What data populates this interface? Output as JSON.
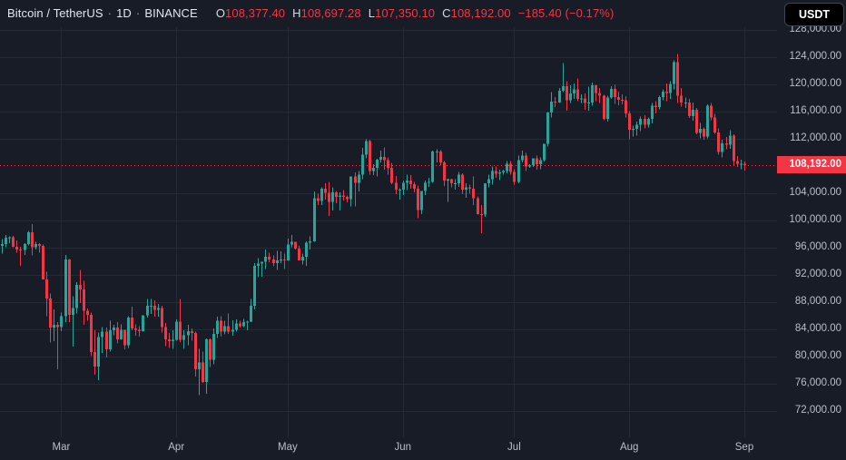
{
  "header": {
    "symbol": "Bitcoin / TetherUS",
    "separator": "·",
    "interval": "1D",
    "exchange": "BINANCE",
    "ohlc": {
      "o_label": "O",
      "open": "108,377.40",
      "h_label": "H",
      "high": "108,697.28",
      "l_label": "L",
      "low": "107,350.10",
      "c_label": "C",
      "close": "108,192.00",
      "change": "−185.40 (−0.17%)"
    }
  },
  "currency_button": {
    "label": "USDT"
  },
  "price_axis": {
    "current_price_label": "108,192.00"
  },
  "colors": {
    "background": "#181c27",
    "grid": "#242a37",
    "up": "#26a69a",
    "down": "#f23645",
    "dotted_line": "#f23645",
    "axis_text": "#b9bfca",
    "title_text": "#e3e6ee",
    "price_tag_bg": "#f23645",
    "price_tag_text": "#ffffff",
    "button_bg": "#000000",
    "button_text": "#ffffff"
  },
  "chart_data": {
    "type": "candlestick",
    "title": "Bitcoin / TetherUS · 1D · BINANCE",
    "unit": "USDT",
    "ylim": [
      68440,
      128440
    ],
    "grid": true,
    "current_price": 108192,
    "y_ticks": [
      {
        "value": 128000,
        "label": "128,000.00"
      },
      {
        "value": 124000,
        "label": "124,000.00"
      },
      {
        "value": 120000,
        "label": "120,000.00"
      },
      {
        "value": 116000,
        "label": "116,000.00"
      },
      {
        "value": 112000,
        "label": "112,000.00"
      },
      {
        "value": 104000,
        "label": "104,000.00"
      },
      {
        "value": 100000,
        "label": "100,000.00"
      },
      {
        "value": 96000,
        "label": "96,000.00"
      },
      {
        "value": 92000,
        "label": "92,000.00"
      },
      {
        "value": 88000,
        "label": "88,000.00"
      },
      {
        "value": 84000,
        "label": "84,000.00"
      },
      {
        "value": 80000,
        "label": "80,000.00"
      },
      {
        "value": 76000,
        "label": "76,000.00"
      },
      {
        "value": 72000,
        "label": "72,000.00"
      }
    ],
    "x_ticks": [
      {
        "label": "Mar",
        "index": 16
      },
      {
        "label": "Apr",
        "index": 47
      },
      {
        "label": "May",
        "index": 77
      },
      {
        "label": "Jun",
        "index": 108
      },
      {
        "label": "Jul",
        "index": 138
      },
      {
        "label": "Aug",
        "index": 169
      },
      {
        "label": "Sep",
        "index": 200
      }
    ],
    "candles": [
      [
        96300,
        97300,
        95200,
        96600
      ],
      [
        96600,
        97900,
        96100,
        97500
      ],
      [
        97500,
        97700,
        96700,
        97600
      ],
      [
        97600,
        97800,
        96100,
        96200
      ],
      [
        96200,
        97100,
        95300,
        95800
      ],
      [
        95800,
        96200,
        93400,
        95700
      ],
      [
        95700,
        96700,
        95000,
        96600
      ],
      [
        96600,
        98500,
        96400,
        98300
      ],
      [
        98300,
        99500,
        94900,
        96100
      ],
      [
        96100,
        96900,
        95800,
        96600
      ],
      [
        96600,
        96700,
        95300,
        96300
      ],
      [
        96300,
        96500,
        91400,
        91400
      ],
      [
        91400,
        92500,
        86000,
        88600
      ],
      [
        88600,
        89300,
        82100,
        84300
      ],
      [
        84300,
        87000,
        82300,
        84700
      ],
      [
        84700,
        85100,
        78200,
        84400
      ],
      [
        84400,
        86500,
        83800,
        86000
      ],
      [
        86000,
        95000,
        85100,
        94300
      ],
      [
        94300,
        94400,
        85100,
        86200
      ],
      [
        86200,
        88900,
        81500,
        87200
      ],
      [
        87200,
        91000,
        86400,
        90600
      ],
      [
        90600,
        92800,
        87900,
        89900
      ],
      [
        89900,
        91200,
        84700,
        86800
      ],
      [
        86800,
        87100,
        85300,
        86200
      ],
      [
        86200,
        86500,
        80100,
        80700
      ],
      [
        80700,
        83900,
        77400,
        78600
      ],
      [
        78600,
        83600,
        76600,
        82900
      ],
      [
        82900,
        84400,
        80600,
        83700
      ],
      [
        83700,
        84300,
        79900,
        81100
      ],
      [
        81100,
        85300,
        80800,
        83900
      ],
      [
        83900,
        84700,
        83200,
        84300
      ],
      [
        84300,
        85100,
        82000,
        82600
      ],
      [
        82600,
        84800,
        82500,
        84000
      ],
      [
        84000,
        84000,
        81100,
        81700
      ],
      [
        81700,
        86000,
        81300,
        85800
      ],
      [
        85800,
        87400,
        83900,
        84200
      ],
      [
        84200,
        84800,
        83100,
        84000
      ],
      [
        84000,
        84500,
        83000,
        83800
      ],
      [
        83800,
        86100,
        83700,
        86100
      ],
      [
        86100,
        88500,
        85800,
        87500
      ],
      [
        87500,
        88500,
        86300,
        87500
      ],
      [
        87500,
        88300,
        85900,
        86900
      ],
      [
        86900,
        87800,
        85900,
        87200
      ],
      [
        87200,
        87500,
        83600,
        84400
      ],
      [
        84400,
        85000,
        81600,
        82600
      ],
      [
        82600,
        83500,
        81300,
        82300
      ],
      [
        82300,
        83900,
        81200,
        82500
      ],
      [
        82500,
        85500,
        82400,
        85200
      ],
      [
        85200,
        88500,
        82200,
        82500
      ],
      [
        82500,
        83900,
        81200,
        83200
      ],
      [
        83200,
        84700,
        81700,
        83800
      ],
      [
        83800,
        84200,
        82400,
        83500
      ],
      [
        83500,
        83700,
        77100,
        78200
      ],
      [
        78200,
        81200,
        74400,
        79200
      ],
      [
        79200,
        80800,
        76200,
        76300
      ],
      [
        76300,
        82700,
        74600,
        82600
      ],
      [
        82600,
        82700,
        78500,
        79600
      ],
      [
        79600,
        84200,
        78900,
        83400
      ],
      [
        83400,
        85900,
        82800,
        85300
      ],
      [
        85300,
        86000,
        83000,
        83700
      ],
      [
        83700,
        85300,
        83300,
        84500
      ],
      [
        84500,
        86400,
        83400,
        83700
      ],
      [
        83700,
        85400,
        83100,
        84000
      ],
      [
        84000,
        85500,
        83700,
        84900
      ],
      [
        84900,
        85300,
        84300,
        84500
      ],
      [
        84500,
        85600,
        84400,
        85100
      ],
      [
        85100,
        85300,
        83900,
        85200
      ],
      [
        85200,
        88500,
        85100,
        87500
      ],
      [
        87500,
        93800,
        87000,
        93400
      ],
      [
        93400,
        94500,
        91700,
        93700
      ],
      [
        93700,
        94000,
        91800,
        94000
      ],
      [
        94000,
        95800,
        92900,
        94700
      ],
      [
        94700,
        95300,
        93900,
        94300
      ],
      [
        94300,
        94900,
        93300,
        93800
      ],
      [
        93800,
        95600,
        92800,
        94200
      ],
      [
        94200,
        95500,
        93800,
        94300
      ],
      [
        94300,
        95200,
        92900,
        94200
      ],
      [
        94200,
        97400,
        94100,
        96500
      ],
      [
        96500,
        97900,
        96100,
        96900
      ],
      [
        96900,
        96900,
        95800,
        95900
      ],
      [
        95900,
        96300,
        94200,
        94200
      ],
      [
        94200,
        95200,
        93600,
        94700
      ],
      [
        94700,
        97000,
        93400,
        96800
      ],
      [
        96800,
        97700,
        95800,
        97000
      ],
      [
        97000,
        104300,
        96900,
        103300
      ],
      [
        103300,
        104000,
        102300,
        102900
      ],
      [
        102900,
        104900,
        102300,
        104700
      ],
      [
        104700,
        105500,
        103100,
        104100
      ],
      [
        104100,
        105700,
        100700,
        102800
      ],
      [
        102800,
        104900,
        101500,
        104200
      ],
      [
        104200,
        104400,
        102600,
        103500
      ],
      [
        103500,
        104200,
        101500,
        103700
      ],
      [
        103700,
        104500,
        103000,
        103500
      ],
      [
        103500,
        103700,
        102700,
        103200
      ],
      [
        103200,
        106500,
        102100,
        106500
      ],
      [
        106500,
        107100,
        102100,
        105600
      ],
      [
        105600,
        107300,
        104300,
        106800
      ],
      [
        106800,
        110700,
        106100,
        109700
      ],
      [
        109700,
        112000,
        109200,
        111700
      ],
      [
        111700,
        111900,
        106800,
        107300
      ],
      [
        107300,
        108300,
        106700,
        107800
      ],
      [
        107800,
        109100,
        106500,
        109000
      ],
      [
        109000,
        110300,
        108600,
        109400
      ],
      [
        109400,
        110800,
        107500,
        108900
      ],
      [
        108900,
        109300,
        106800,
        107800
      ],
      [
        107800,
        108500,
        105400,
        105600
      ],
      [
        105600,
        106600,
        103900,
        104600
      ],
      [
        104600,
        104800,
        103100,
        104600
      ],
      [
        104600,
        105900,
        103800,
        105600
      ],
      [
        105600,
        106800,
        104500,
        105900
      ],
      [
        105900,
        106700,
        104700,
        105400
      ],
      [
        105400,
        105700,
        104200,
        104700
      ],
      [
        104700,
        105200,
        100400,
        101600
      ],
      [
        101600,
        104400,
        101000,
        104400
      ],
      [
        104400,
        105900,
        103800,
        105600
      ],
      [
        105600,
        106300,
        105000,
        105700
      ],
      [
        105700,
        110300,
        105600,
        110200
      ],
      [
        110200,
        110500,
        108600,
        110200
      ],
      [
        110200,
        110400,
        108200,
        108600
      ],
      [
        108600,
        108800,
        105100,
        105900
      ],
      [
        105900,
        106200,
        102800,
        106100
      ],
      [
        106100,
        106200,
        104900,
        105500
      ],
      [
        105500,
        106100,
        104600,
        105500
      ],
      [
        105500,
        107200,
        105000,
        106800
      ],
      [
        106800,
        107000,
        103900,
        104600
      ],
      [
        104600,
        105500,
        103400,
        104900
      ],
      [
        104900,
        105300,
        104000,
        104700
      ],
      [
        104700,
        106500,
        102300,
        103300
      ],
      [
        103300,
        103600,
        100900,
        101000
      ],
      [
        101000,
        102300,
        98200,
        100900
      ],
      [
        100900,
        105500,
        100600,
        105500
      ],
      [
        105500,
        106800,
        104900,
        106100
      ],
      [
        106100,
        108000,
        105300,
        107300
      ],
      [
        107300,
        108000,
        106300,
        106900
      ],
      [
        106900,
        107500,
        106000,
        107100
      ],
      [
        107100,
        107500,
        106800,
        107300
      ],
      [
        107300,
        108800,
        107000,
        108400
      ],
      [
        108400,
        108800,
        106800,
        107200
      ],
      [
        107200,
        107600,
        105300,
        105700
      ],
      [
        105700,
        109600,
        105500,
        108900
      ],
      [
        108900,
        110300,
        108600,
        109600
      ],
      [
        109600,
        110000,
        107300,
        108000
      ],
      [
        108000,
        108300,
        107800,
        108200
      ],
      [
        108200,
        109200,
        107900,
        109200
      ],
      [
        109200,
        109600,
        107500,
        108300
      ],
      [
        108300,
        109300,
        107600,
        108900
      ],
      [
        108900,
        111300,
        108700,
        111300
      ],
      [
        111300,
        116000,
        110900,
        115900
      ],
      [
        115900,
        118900,
        115200,
        117500
      ],
      [
        117500,
        118200,
        116700,
        117400
      ],
      [
        117400,
        119500,
        117300,
        119100
      ],
      [
        119100,
        123200,
        118900,
        119800
      ],
      [
        119800,
        120500,
        116200,
        117700
      ],
      [
        117700,
        119900,
        117300,
        118700
      ],
      [
        118700,
        120200,
        117900,
        119300
      ],
      [
        119300,
        120900,
        117600,
        117900
      ],
      [
        117900,
        118600,
        117300,
        118000
      ],
      [
        118000,
        118700,
        116300,
        117300
      ],
      [
        117300,
        119700,
        116200,
        117400
      ],
      [
        117400,
        120300,
        116900,
        119900
      ],
      [
        119900,
        120000,
        117600,
        118800
      ],
      [
        118800,
        119500,
        117300,
        118400
      ],
      [
        118400,
        118500,
        114800,
        115000
      ],
      [
        115000,
        118400,
        114600,
        118100
      ],
      [
        118100,
        119800,
        117900,
        119400
      ],
      [
        119400,
        120000,
        117200,
        118200
      ],
      [
        118200,
        119000,
        117000,
        117800
      ],
      [
        117800,
        118600,
        117100,
        117700
      ],
      [
        117700,
        118300,
        115200,
        115800
      ],
      [
        115800,
        116100,
        112000,
        113400
      ],
      [
        113400,
        114000,
        112400,
        113500
      ],
      [
        113500,
        114600,
        112500,
        114100
      ],
      [
        114100,
        115300,
        113200,
        115000
      ],
      [
        115000,
        115500,
        113600,
        114100
      ],
      [
        114100,
        115200,
        113700,
        115000
      ],
      [
        115000,
        117300,
        114300,
        116900
      ],
      [
        116900,
        117600,
        115800,
        116700
      ],
      [
        116700,
        118400,
        116400,
        118200
      ],
      [
        118200,
        119300,
        117700,
        119000
      ],
      [
        119000,
        120200,
        117600,
        118800
      ],
      [
        118800,
        120500,
        117900,
        120100
      ],
      [
        120100,
        123600,
        119300,
        123300
      ],
      [
        123300,
        124500,
        117300,
        118400
      ],
      [
        118400,
        119500,
        116800,
        117400
      ],
      [
        117400,
        118100,
        116600,
        117400
      ],
      [
        117400,
        117900,
        115100,
        115400
      ],
      [
        115400,
        117400,
        114700,
        116300
      ],
      [
        116300,
        116600,
        112700,
        112900
      ],
      [
        112900,
        114400,
        112100,
        113500
      ],
      [
        113500,
        113700,
        111900,
        112400
      ],
      [
        112400,
        117100,
        112100,
        116900
      ],
      [
        116900,
        117300,
        114800,
        115200
      ],
      [
        115200,
        115700,
        112800,
        113000
      ],
      [
        113000,
        113600,
        109700,
        110100
      ],
      [
        110100,
        111900,
        109300,
        111400
      ],
      [
        111400,
        112300,
        110500,
        111200
      ],
      [
        111200,
        113300,
        110600,
        112500
      ],
      [
        112500,
        112700,
        108200,
        108800
      ],
      [
        108800,
        109500,
        107900,
        108400
      ],
      [
        108400,
        109000,
        107600,
        108400
      ],
      [
        108377.4,
        108697.28,
        107350.1,
        108192
      ]
    ]
  }
}
